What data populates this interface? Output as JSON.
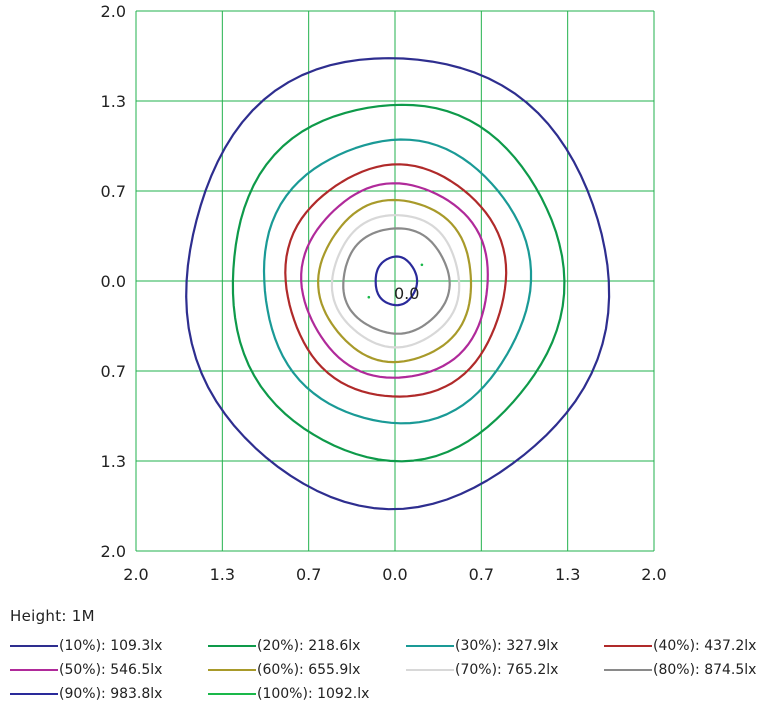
{
  "chart_data": {
    "type": "isolux-contour",
    "x_tick_labels": [
      "2.0",
      "1.3",
      "0.7",
      "0.0",
      "0.7",
      "1.3",
      "2.0"
    ],
    "y_tick_labels": [
      "2.0",
      "1.3",
      "0.7",
      "0.0",
      "0.7",
      "1.3",
      "2.0"
    ],
    "center_label": "0.0",
    "xlim": [
      -2.0,
      2.0
    ],
    "ylim": [
      -2.0,
      2.0
    ],
    "grid": true,
    "grid_color": "#22b14c",
    "height_label": "Height: 1M",
    "series": [
      {
        "label": "(10%): 109.3lx",
        "color": "#2e2e8f",
        "rx": 1.63,
        "ry": 1.67
      },
      {
        "label": "(20%): 218.6lx",
        "color": "#0e9a4a",
        "rx": 1.28,
        "ry": 1.32
      },
      {
        "label": "(30%): 327.9lx",
        "color": "#1a9a96",
        "rx": 1.03,
        "ry": 1.05
      },
      {
        "label": "(40%): 437.2lx",
        "color": "#b02a2a",
        "rx": 0.85,
        "ry": 0.86
      },
      {
        "label": "(50%): 546.5lx",
        "color": "#b02a9a",
        "rx": 0.72,
        "ry": 0.72
      },
      {
        "label": "(60%): 655.9lx",
        "color": "#a89a2a",
        "rx": 0.59,
        "ry": 0.6
      },
      {
        "label": "(70%): 765.2lx",
        "color": "#d8d8d8",
        "rx": 0.49,
        "ry": 0.49
      },
      {
        "label": "(80%): 874.5lx",
        "color": "#8a8a8a",
        "rx": 0.41,
        "ry": 0.39
      },
      {
        "label": "(90%): 983.8lx",
        "color": "#2a2a9a",
        "rx": 0.16,
        "ry": 0.18
      },
      {
        "label": "(100%): 1092.lx",
        "color": "#1ab84a",
        "rx": 0,
        "ry": 0
      }
    ],
    "peak_markers": [
      {
        "x": 0.2,
        "y": 0.12
      },
      {
        "x": -0.21,
        "y": -0.12
      }
    ]
  }
}
